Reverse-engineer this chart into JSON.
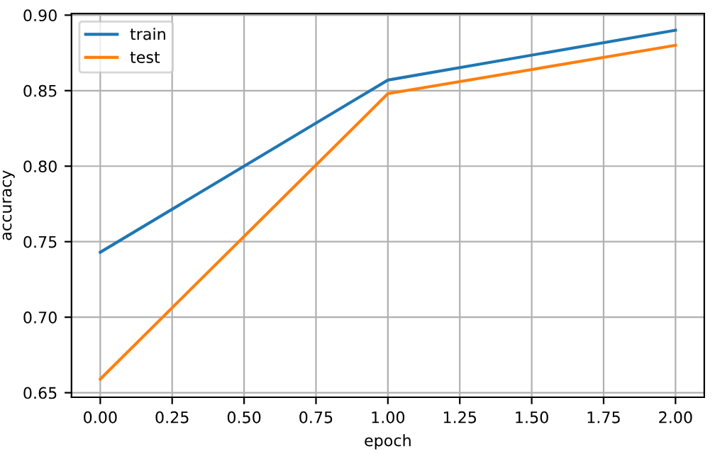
{
  "chart_data": {
    "type": "line",
    "xlabel": "epoch",
    "ylabel": "accuracy",
    "x": [
      0,
      1,
      2
    ],
    "series": [
      {
        "name": "train",
        "color": "#1f77b4",
        "values": [
          0.743,
          0.857,
          0.89
        ]
      },
      {
        "name": "test",
        "color": "#ff7f0e",
        "values": [
          0.659,
          0.848,
          0.88
        ]
      }
    ],
    "xlim": [
      -0.1,
      2.1
    ],
    "xticks": [
      {
        "value": 0,
        "label": "0.00"
      },
      {
        "value": 0.25,
        "label": "0.25"
      },
      {
        "value": 0.5,
        "label": "0.50"
      },
      {
        "value": 0.75,
        "label": "0.75"
      },
      {
        "value": 1,
        "label": "1.00"
      },
      {
        "value": 1.25,
        "label": "1.25"
      },
      {
        "value": 1.5,
        "label": "1.50"
      },
      {
        "value": 1.75,
        "label": "1.75"
      },
      {
        "value": 2,
        "label": "2.00"
      }
    ],
    "ylim": [
      0.647,
      0.901
    ],
    "yticks": [
      {
        "value": 0.65,
        "label": "0.65"
      },
      {
        "value": 0.7,
        "label": "0.70"
      },
      {
        "value": 0.75,
        "label": "0.75"
      },
      {
        "value": 0.8,
        "label": "0.80"
      },
      {
        "value": 0.85,
        "label": "0.85"
      },
      {
        "value": 0.9,
        "label": "0.90"
      }
    ],
    "grid": true,
    "legend": "top left",
    "marker": "none",
    "line_style": "solid"
  }
}
